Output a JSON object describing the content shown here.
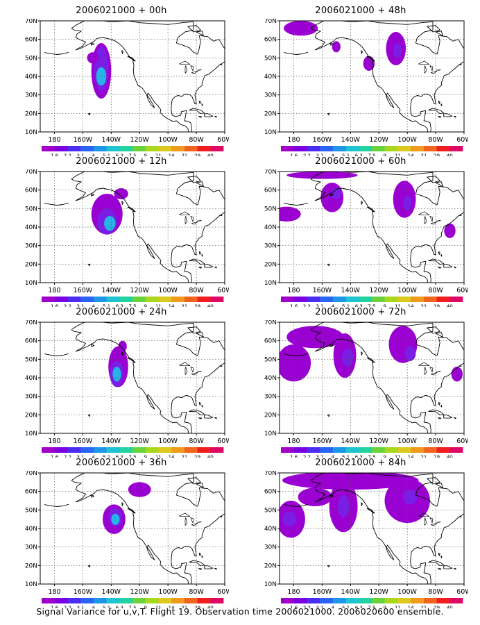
{
  "caption": "Signal Variance for u,v,T. Flight 19. Observation time 2006021000. 2006020600 ensemble.",
  "map": {
    "lon_range": [
      -190,
      -60
    ],
    "lat_range": [
      10,
      70
    ],
    "lat_ticks": [
      "10N",
      "20N",
      "30N",
      "40N",
      "50N",
      "60N",
      "70N"
    ],
    "lon_ticks": [
      "180",
      "160W",
      "140W",
      "120W",
      "100W",
      "80W",
      "60W"
    ],
    "grid": "dotted"
  },
  "colorbar": {
    "labels": [
      "1.6",
      "2.2",
      "3.1",
      "4",
      "5.1",
      "6.3",
      "7.5",
      "9",
      "11",
      "14",
      "21",
      "29",
      "40"
    ],
    "colors": [
      "#a000c8",
      "#7a00e0",
      "#4b2cf0",
      "#2a64f5",
      "#1e96e8",
      "#1fc3d2",
      "#22d2a0",
      "#6ad23c",
      "#a8d81e",
      "#dcc81e",
      "#f09a1e",
      "#f0641e",
      "#f01e1e",
      "#dc0a64"
    ]
  },
  "panels": [
    {
      "title": "2006021000 + 00h"
    },
    {
      "title": "2006021000 + 12h"
    },
    {
      "title": "2006021000 + 24h"
    },
    {
      "title": "2006021000 + 36h"
    },
    {
      "title": "2006021000 + 48h"
    },
    {
      "title": "2006021000 + 60h"
    },
    {
      "title": "2006021000 + 72h"
    },
    {
      "title": "2006021000 + 84h"
    }
  ],
  "variance_blobs": [
    [
      {
        "lon": -147,
        "lat": 43,
        "rlon": 7,
        "rlat": 15,
        "level": 1
      },
      {
        "lon": -147,
        "lat": 44,
        "rlon": 5,
        "rlat": 12,
        "level": 2
      },
      {
        "lon": -147,
        "lat": 40,
        "rlon": 3.5,
        "rlat": 5,
        "level": 4
      },
      {
        "lon": -153,
        "lat": 50,
        "rlon": 4,
        "rlat": 3,
        "level": 1
      }
    ],
    [
      {
        "lon": -143,
        "lat": 47,
        "rlon": 11,
        "rlat": 11,
        "level": 1
      },
      {
        "lon": -143,
        "lat": 43,
        "rlon": 7,
        "rlat": 7,
        "level": 2
      },
      {
        "lon": -141,
        "lat": 42,
        "rlon": 4,
        "rlat": 4,
        "level": 4
      },
      {
        "lon": -133,
        "lat": 58,
        "rlon": 5,
        "rlat": 3,
        "level": 1
      }
    ],
    [
      {
        "lon": -135,
        "lat": 46,
        "rlon": 7,
        "rlat": 11,
        "level": 1
      },
      {
        "lon": -136,
        "lat": 42,
        "rlon": 5,
        "rlat": 7,
        "level": 2
      },
      {
        "lon": -136,
        "lat": 42,
        "rlon": 3,
        "rlat": 4,
        "level": 4
      },
      {
        "lon": -132,
        "lat": 57,
        "rlon": 3,
        "rlat": 3,
        "level": 1
      }
    ],
    [
      {
        "lon": -138,
        "lat": 45,
        "rlon": 8,
        "rlat": 8,
        "level": 1
      },
      {
        "lon": -137,
        "lat": 46,
        "rlon": 5,
        "rlat": 5,
        "level": 2
      },
      {
        "lon": -137,
        "lat": 45,
        "rlon": 3,
        "rlat": 3,
        "level": 4
      },
      {
        "lon": -120,
        "lat": 61,
        "rlon": 8,
        "rlat": 4,
        "level": 1
      }
    ],
    [
      {
        "lon": -175,
        "lat": 66,
        "rlon": 12,
        "rlat": 4,
        "level": 1
      },
      {
        "lon": -150,
        "lat": 56,
        "rlon": 3,
        "rlat": 3,
        "level": 1
      },
      {
        "lon": -108,
        "lat": 55,
        "rlon": 7,
        "rlat": 9,
        "level": 1
      },
      {
        "lon": -107,
        "lat": 54,
        "rlon": 3,
        "rlat": 4,
        "level": 2
      },
      {
        "lon": -127,
        "lat": 47,
        "rlon": 4,
        "rlat": 4,
        "level": 1
      }
    ],
    [
      {
        "lon": -185,
        "lat": 47,
        "rlon": 10,
        "rlat": 4,
        "level": 1
      },
      {
        "lon": -153,
        "lat": 56,
        "rlon": 8,
        "rlat": 8,
        "level": 1
      },
      {
        "lon": -150,
        "lat": 58,
        "rlon": 4,
        "rlat": 3,
        "level": 2
      },
      {
        "lon": -102,
        "lat": 55,
        "rlon": 8,
        "rlat": 10,
        "level": 1
      },
      {
        "lon": -100,
        "lat": 53,
        "rlon": 3,
        "rlat": 4,
        "level": 2
      },
      {
        "lon": -70,
        "lat": 38,
        "rlon": 4,
        "rlat": 4,
        "level": 1
      },
      {
        "lon": -160,
        "lat": 68,
        "rlon": 25,
        "rlat": 2,
        "level": 1
      }
    ],
    [
      {
        "lon": -180,
        "lat": 48,
        "rlon": 12,
        "rlat": 10,
        "level": 1
      },
      {
        "lon": -144,
        "lat": 52,
        "rlon": 8,
        "rlat": 12,
        "level": 1
      },
      {
        "lon": -142,
        "lat": 51,
        "rlon": 4,
        "rlat": 5,
        "level": 2
      },
      {
        "lon": -103,
        "lat": 58,
        "rlon": 10,
        "rlat": 10,
        "level": 1
      },
      {
        "lon": -98,
        "lat": 53,
        "rlon": 4,
        "rlat": 4,
        "level": 2
      },
      {
        "lon": -165,
        "lat": 62,
        "rlon": 20,
        "rlat": 6,
        "level": 1
      },
      {
        "lon": -65,
        "lat": 42,
        "rlon": 4,
        "rlat": 4,
        "level": 1
      }
    ],
    [
      {
        "lon": -182,
        "lat": 45,
        "rlon": 10,
        "rlat": 10,
        "level": 1
      },
      {
        "lon": -183,
        "lat": 45,
        "rlon": 5,
        "rlat": 4,
        "level": 2
      },
      {
        "lon": -145,
        "lat": 52,
        "rlon": 10,
        "rlat": 14,
        "level": 1
      },
      {
        "lon": -145,
        "lat": 52,
        "rlon": 4,
        "rlat": 6,
        "level": 2
      },
      {
        "lon": -100,
        "lat": 55,
        "rlon": 16,
        "rlat": 12,
        "level": 1
      },
      {
        "lon": -98,
        "lat": 57,
        "rlon": 5,
        "rlat": 4,
        "level": 2
      },
      {
        "lon": -140,
        "lat": 66,
        "rlon": 48,
        "rlat": 5,
        "level": 1
      },
      {
        "lon": -165,
        "lat": 57,
        "rlon": 12,
        "rlat": 5,
        "level": 1
      }
    ]
  ]
}
